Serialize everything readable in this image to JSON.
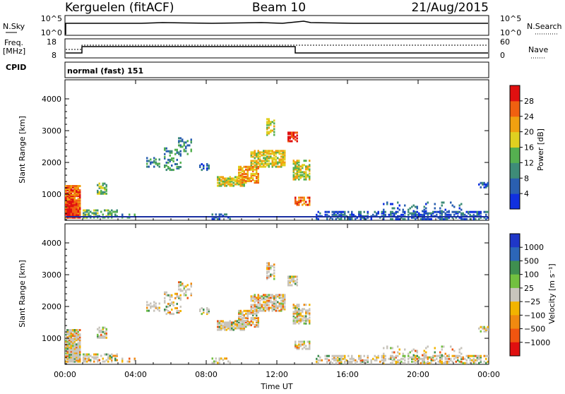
{
  "header": {
    "station": "Kerguelen (fitACF)",
    "beam": "Beam 10",
    "date": "21/Aug/2015"
  },
  "noise_panel": {
    "left_label": "N.Sky",
    "right_label": "N.Search",
    "left_ticks": [
      "10^5",
      "10^0"
    ],
    "right_ticks": [
      "10^5",
      "10^0"
    ]
  },
  "freq_panel": {
    "left_label_1": "Freq.",
    "left_label_2": "[MHz]",
    "right_label": "Nave",
    "left_ticks": [
      "18",
      "8"
    ],
    "right_ticks": [
      "60",
      "0"
    ]
  },
  "cpid_panel": {
    "label": "CPID",
    "text": "normal (fast) 151"
  },
  "chart_data": [
    {
      "type": "heatmap",
      "title": "",
      "ylabel": "Slant Range [km]",
      "ylim": [
        180,
        4600
      ],
      "yticks": [
        "1000",
        "2000",
        "3000",
        "4000"
      ],
      "colorbar": {
        "label": "Power [dB]",
        "ticks": [
          "4",
          "8",
          "12",
          "16",
          "20",
          "24",
          "28"
        ]
      }
    },
    {
      "type": "heatmap",
      "title": "",
      "ylabel": "Slant Range [km]",
      "ylim": [
        180,
        4600
      ],
      "yticks": [
        "1000",
        "2000",
        "3000",
        "4000"
      ],
      "xlabel": "Time UT",
      "xticks": [
        "00:00",
        "04:00",
        "08:00",
        "12:00",
        "16:00",
        "20:00",
        "00:00"
      ],
      "colorbar": {
        "label": "Velocity [m s⁻¹]",
        "ticks": [
          "1000",
          "500",
          "100",
          "25",
          "−25",
          "−100",
          "−500",
          "−1000"
        ]
      }
    }
  ],
  "colors": {
    "power": [
      "#1030e0",
      "#2a5fb0",
      "#3e8c78",
      "#55b050",
      "#e0d020",
      "#f0a010",
      "#f06010",
      "#e01010"
    ],
    "velocity": [
      "#1f37c8",
      "#2c66b8",
      "#3f8f50",
      "#72c040",
      "#c8c4bc",
      "#f2b400",
      "#f08a10",
      "#f05510",
      "#e01010"
    ]
  }
}
